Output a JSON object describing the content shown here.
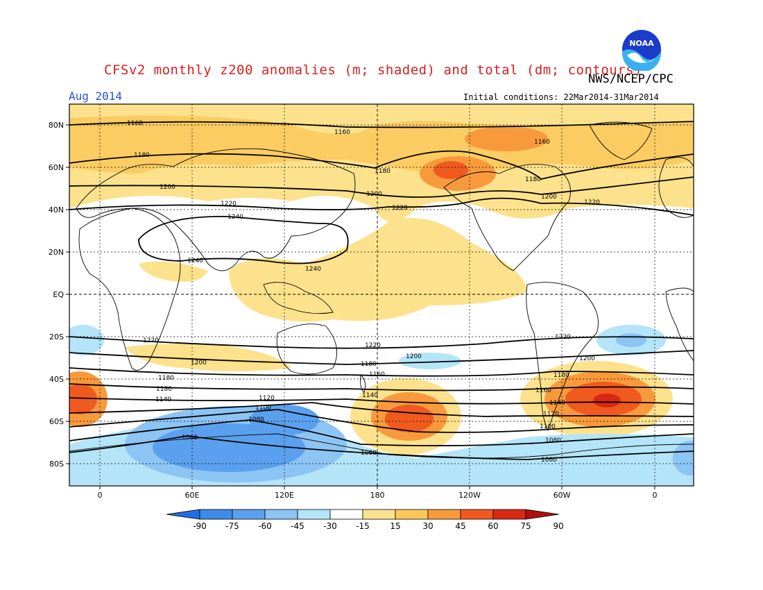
{
  "title": "CFSv2 monthly z200 anomalies (m; shaded) and total (dm; contours)",
  "agency": "NWS/NCEP/CPC",
  "period": "Aug 2014",
  "initial_conditions": "Initial conditions: 22Mar2014-31Mar2014",
  "logo_text": "NOAA",
  "map": {
    "lat_labels": [
      "80N",
      "60N",
      "40N",
      "20N",
      "EQ",
      "20S",
      "40S",
      "60S",
      "80S"
    ],
    "lon_labels": [
      "0",
      "60E",
      "120E",
      "180",
      "120W",
      "60W",
      "0"
    ],
    "colors": {
      "land_line": "#000000",
      "grid": "#000000"
    }
  },
  "colorbar": {
    "labels": [
      "-90",
      "-75",
      "-60",
      "-45",
      "-30",
      "-15",
      "15",
      "30",
      "45",
      "60",
      "75",
      "90"
    ],
    "colors": [
      "#1e6ee6",
      "#3c8ce8",
      "#5aa0ee",
      "#8cc4f4",
      "#b4e4f8",
      "#ffffff",
      "#fce28c",
      "#fac85a",
      "#f89a3c",
      "#f05a1e",
      "#d82814",
      "#b01010"
    ]
  },
  "contours": [
    {
      "label": "1160"
    },
    {
      "label": "1160"
    },
    {
      "label": "1160"
    },
    {
      "label": "1180"
    },
    {
      "label": "1180"
    },
    {
      "label": "1180"
    },
    {
      "label": "1200"
    },
    {
      "label": "1200"
    },
    {
      "label": "1200"
    },
    {
      "label": "1220"
    },
    {
      "label": "1220"
    },
    {
      "label": "1220"
    },
    {
      "label": "1240"
    },
    {
      "label": "1240"
    },
    {
      "label": "1240"
    },
    {
      "label": "1220"
    },
    {
      "label": "1220"
    },
    {
      "label": "1220"
    },
    {
      "label": "1200"
    },
    {
      "label": "1200"
    },
    {
      "label": "1200"
    },
    {
      "label": "1180"
    },
    {
      "label": "1180"
    },
    {
      "label": "1160"
    },
    {
      "label": "1140"
    },
    {
      "label": "1140"
    },
    {
      "label": "1140"
    },
    {
      "label": "1120"
    },
    {
      "label": "1120"
    },
    {
      "label": "1100"
    },
    {
      "label": "1100"
    },
    {
      "label": "1080"
    },
    {
      "label": "1080"
    },
    {
      "label": "1060"
    },
    {
      "label": "1060"
    },
    {
      "label": "1060"
    },
    {
      "label": "1160"
    },
    {
      "label": "1180"
    },
    {
      "label": "1180"
    }
  ]
}
